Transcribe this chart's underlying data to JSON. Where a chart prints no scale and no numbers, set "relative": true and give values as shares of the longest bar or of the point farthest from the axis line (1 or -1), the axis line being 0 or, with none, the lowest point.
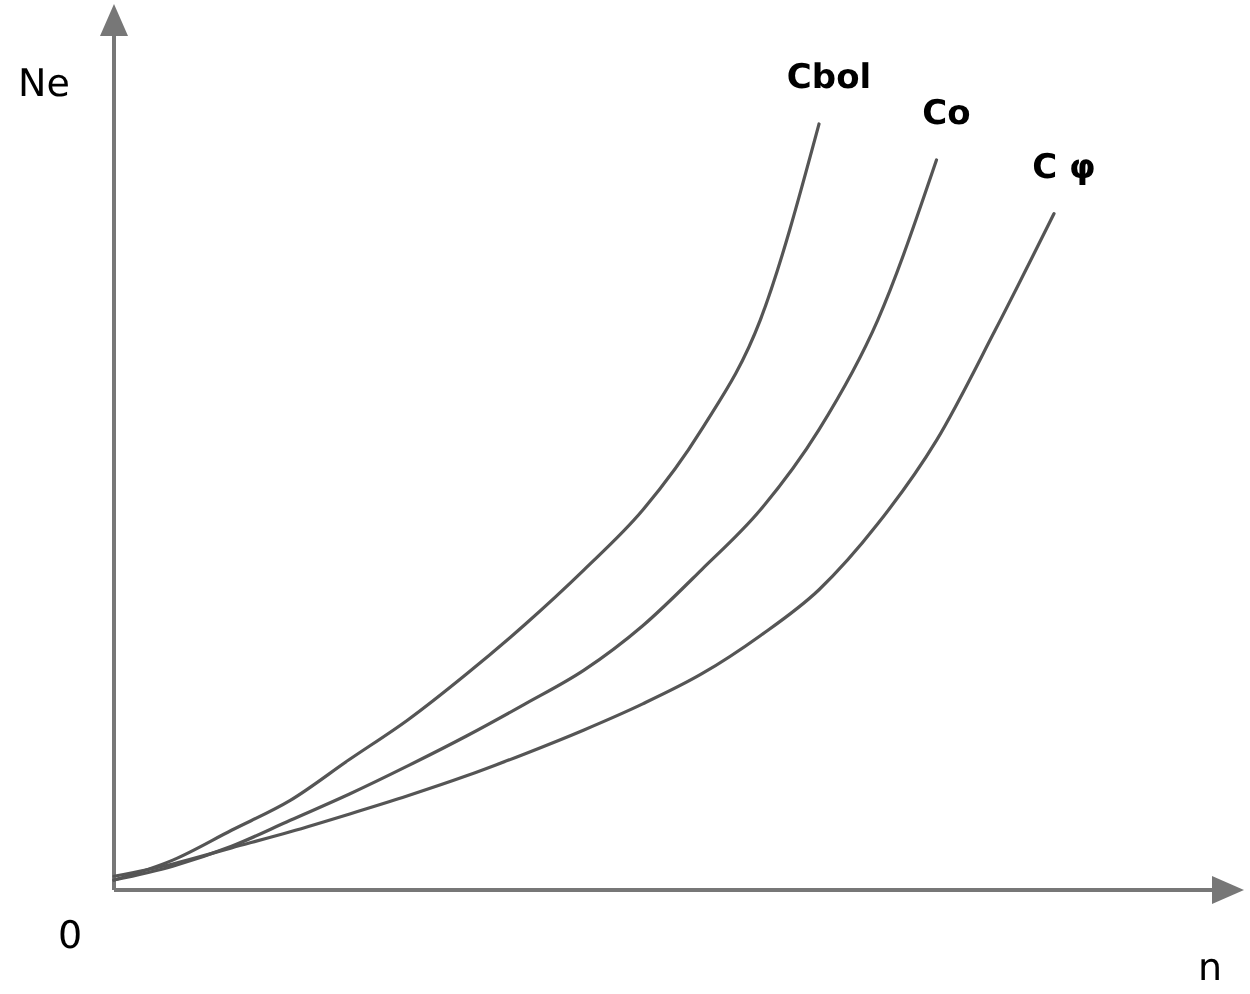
{
  "chart_data": {
    "type": "line",
    "relative": true,
    "xlabel": "n",
    "ylabel": "Ne",
    "annotations": [
      "0"
    ],
    "categories": [
      null,
      null,
      null,
      null,
      null,
      null,
      null,
      null,
      null,
      null,
      null,
      null,
      null,
      null,
      null,
      null,
      null
    ],
    "series": [
      {
        "name": "Cbol",
        "color": "#555555",
        "values": [
          0.013,
          0.039,
          0.078,
          0.117,
          0.17,
          0.222,
          0.282,
          0.347,
          0.418,
          0.496,
          0.601,
          0.744,
          1,
          null,
          null,
          null,
          null
        ]
      },
      {
        "name": "Co",
        "color": "#555555",
        "values": [
          0.013,
          0.031,
          0.057,
          0.091,
          0.125,
          0.162,
          0.201,
          0.243,
          0.287,
          0.345,
          0.418,
          0.496,
          0.601,
          0.744,
          0.953,
          null,
          null
        ]
      },
      {
        "name": "C φ",
        "color": "#555555",
        "values": [
          0.018,
          0.034,
          0.055,
          0.076,
          0.099,
          0.123,
          0.149,
          0.178,
          0.209,
          0.243,
          0.282,
          0.332,
          0.392,
          0.478,
          0.587,
          0.731,
          0.883
        ]
      }
    ],
    "marker": "none",
    "line_style": "solid"
  }
}
